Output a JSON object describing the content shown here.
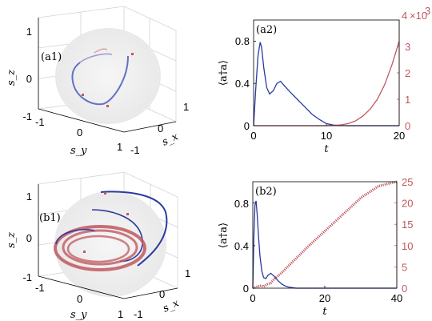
{
  "chart_data": [
    {
      "id": "a1",
      "type": "3d-trajectory",
      "panel_label": "(a1)",
      "xlabel": "s_y",
      "ylabel": "s_x",
      "zlabel": "s_z",
      "z_ticks": [
        "1",
        "0",
        "-1"
      ],
      "sy_ticks": [
        "-1",
        "0",
        "1"
      ],
      "sx_ticks": [
        "-1",
        "0",
        "1"
      ],
      "colors": {
        "trajectory_blue": "#4a5ab8",
        "trajectory_red": "#c0575f",
        "sphere": "#eeeeee"
      }
    },
    {
      "id": "a2",
      "type": "line",
      "panel_label": "(a2)",
      "xlabel": "t",
      "ylabel": "⟨a†a⟩",
      "xlim": [
        0,
        20
      ],
      "ylim": [
        0,
        1.0
      ],
      "x_ticks": [
        "0",
        "10",
        "20"
      ],
      "y_ticks": [
        "0",
        "0.4",
        "0.8"
      ],
      "right_ylim": [
        0,
        4
      ],
      "right_y_ticks": [
        "0",
        "1",
        "2",
        "3"
      ],
      "right_top_tick": "4",
      "right_scale_label": "×10",
      "right_scale_exp": "3",
      "series": [
        {
          "color": "#2b3aa0",
          "axis": "left",
          "x": [
            0,
            0.3,
            0.6,
            0.9,
            1.1,
            1.4,
            1.8,
            2.2,
            2.7,
            3.2,
            3.7,
            4.2,
            5,
            6,
            7,
            8,
            9,
            10,
            11,
            12,
            13,
            14,
            15,
            16,
            17,
            18,
            19,
            20
          ],
          "y": [
            0,
            0.35,
            0.66,
            0.79,
            0.74,
            0.55,
            0.36,
            0.3,
            0.33,
            0.4,
            0.42,
            0.38,
            0.32,
            0.25,
            0.18,
            0.11,
            0.06,
            0.02,
            0.005,
            0.001,
            0.0,
            0.0,
            0.0,
            0.0,
            0.0,
            0.0,
            0.0,
            0.0
          ]
        },
        {
          "color": "#c0575f",
          "axis": "right",
          "x": [
            0,
            2,
            4,
            6,
            8,
            10,
            11,
            12,
            13,
            14,
            15,
            16,
            17,
            18,
            19,
            20
          ],
          "y": [
            0,
            0,
            0,
            0,
            0,
            0,
            0.01,
            0.03,
            0.08,
            0.18,
            0.36,
            0.62,
            1.0,
            1.55,
            2.3,
            3.2
          ]
        }
      ]
    },
    {
      "id": "b1",
      "type": "3d-trajectory",
      "panel_label": "(b1)",
      "xlabel": "s_y",
      "ylabel": "s_x",
      "zlabel": "s_z",
      "z_ticks": [
        "1",
        "0",
        "-1"
      ],
      "sy_ticks": [
        "-1",
        "0",
        "1"
      ],
      "sx_ticks": [
        "-1",
        "0",
        "1"
      ],
      "colors": {
        "trajectory_blue": "#2b3aa0",
        "trajectory_red": "#c0575f",
        "sphere": "#eeeeee"
      }
    },
    {
      "id": "b2",
      "type": "line",
      "panel_label": "(b2)",
      "xlabel": "t",
      "ylabel": "⟨a†a⟩",
      "xlim": [
        0,
        40
      ],
      "ylim": [
        0,
        1.0
      ],
      "x_ticks": [
        "0",
        "20",
        "40"
      ],
      "y_ticks": [
        "0",
        "0.4",
        "0.8"
      ],
      "right_ylim": [
        0,
        25
      ],
      "right_y_ticks": [
        "0",
        "5",
        "10",
        "15",
        "20",
        "25"
      ],
      "series": [
        {
          "color": "#2b3aa0",
          "axis": "left",
          "x": [
            0,
            0.3,
            0.6,
            0.9,
            1.2,
            1.6,
            2.0,
            2.5,
            3.0,
            3.6,
            4.2,
            5,
            6,
            7,
            8,
            9,
            10,
            12,
            15,
            20,
            30,
            40
          ],
          "y": [
            0,
            0.5,
            0.78,
            0.82,
            0.7,
            0.48,
            0.3,
            0.16,
            0.1,
            0.09,
            0.12,
            0.14,
            0.11,
            0.07,
            0.04,
            0.02,
            0.01,
            0.0,
            0.0,
            0.0,
            0.0,
            0.0
          ]
        },
        {
          "color": "#c0575f",
          "axis": "right",
          "x": [
            0,
            1,
            2,
            3,
            4,
            5,
            6,
            7,
            8,
            10,
            15,
            20,
            25,
            30,
            35,
            40
          ],
          "y": [
            0,
            0.3,
            0.6,
            0.4,
            0.9,
            1.2,
            2.2,
            2.9,
            3.6,
            5.3,
            9.5,
            13.4,
            17.3,
            21.2,
            24.0,
            25.0
          ]
        }
      ]
    }
  ]
}
